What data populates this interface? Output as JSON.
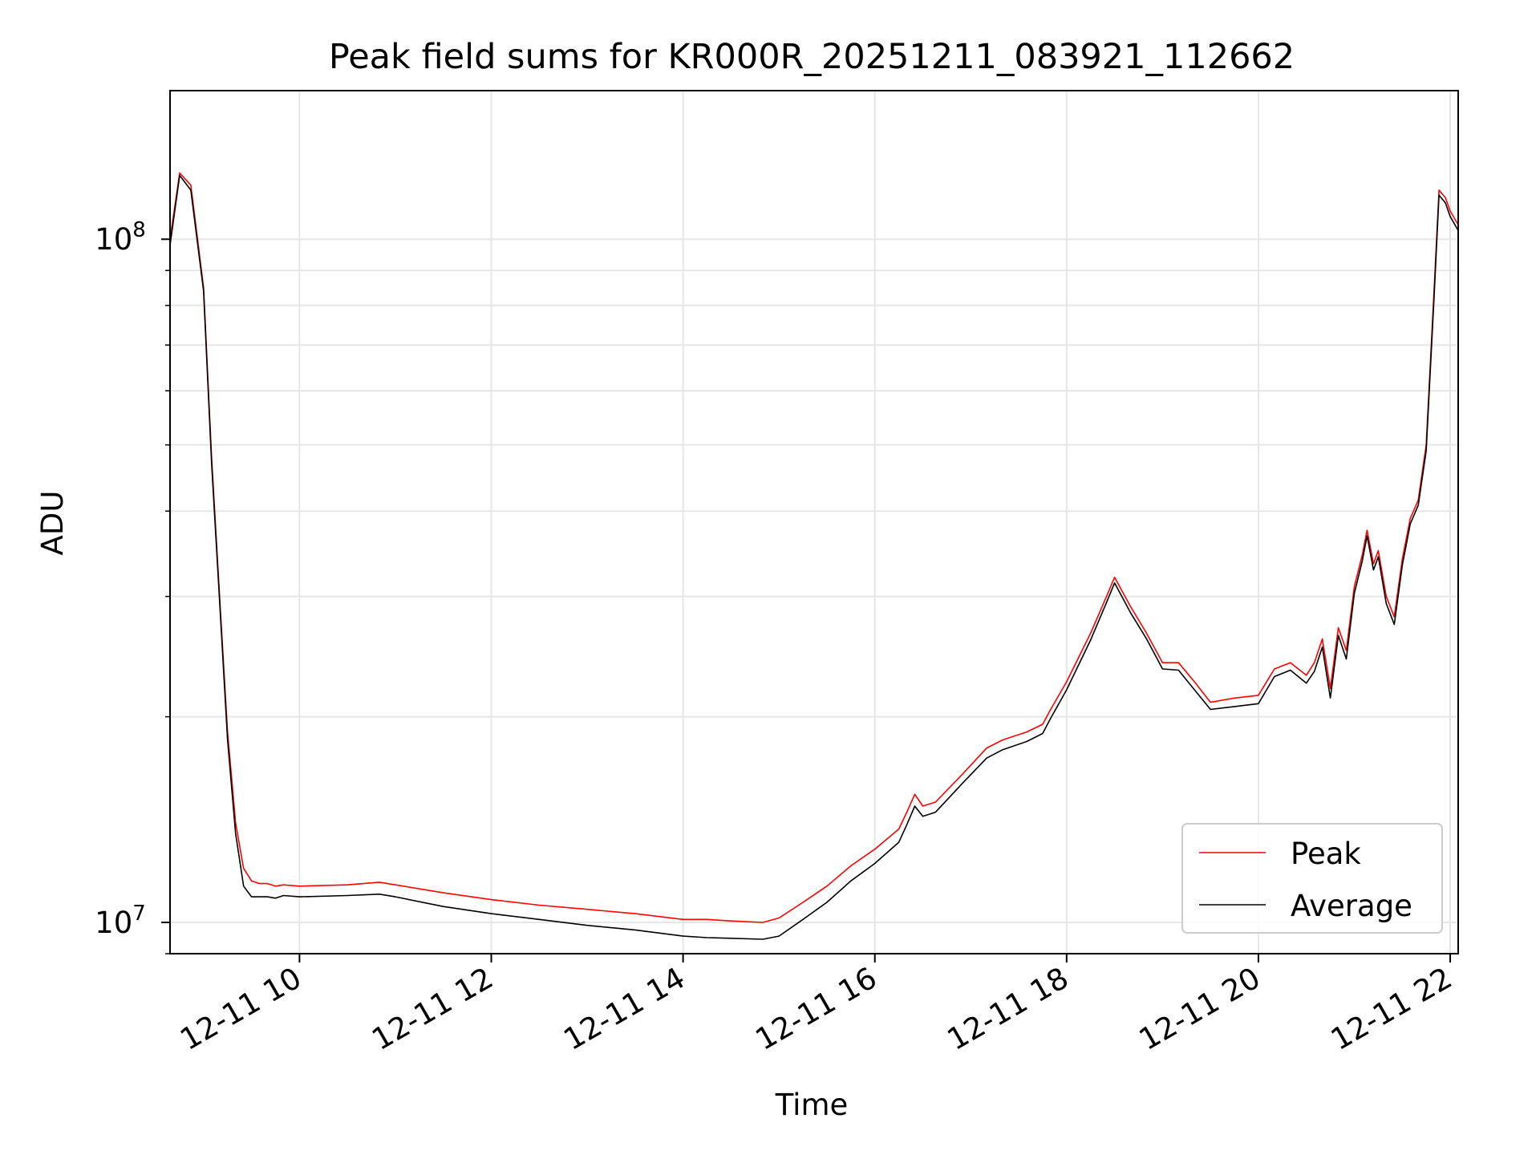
{
  "chart_data": {
    "type": "line",
    "title": "Peak field sums for KR000R_20251211_083921_112662",
    "xlabel": "Time",
    "ylabel": "ADU",
    "y_scale": "log",
    "grid": true,
    "legend_position": "bottom-right",
    "xlim": [
      "12-11 08:39",
      "12-11 22:05"
    ],
    "ylim": [
      9000000,
      165000000
    ],
    "x_ticks": [
      {
        "value": "12-11 10:00",
        "label": "12-11 10"
      },
      {
        "value": "12-11 12:00",
        "label": "12-11 12"
      },
      {
        "value": "12-11 14:00",
        "label": "12-11 14"
      },
      {
        "value": "12-11 16:00",
        "label": "12-11 16"
      },
      {
        "value": "12-11 18:00",
        "label": "12-11 18"
      },
      {
        "value": "12-11 20:00",
        "label": "12-11 20"
      },
      {
        "value": "12-11 22:00",
        "label": "12-11 22"
      }
    ],
    "y_ticks": [
      {
        "value": 10000000,
        "base": "10",
        "exp": "7"
      },
      {
        "value": 100000000,
        "base": "10",
        "exp": "8"
      }
    ],
    "series": [
      {
        "name": "Peak",
        "color": "#ff0000",
        "x": [
          "12-11 08:39",
          "12-11 08:45",
          "12-11 08:52",
          "12-11 09:00",
          "12-11 09:05",
          "12-11 09:10",
          "12-11 09:15",
          "12-11 09:20",
          "12-11 09:25",
          "12-11 09:30",
          "12-11 09:35",
          "12-11 09:40",
          "12-11 09:45",
          "12-11 09:50",
          "12-11 10:00",
          "12-11 10:30",
          "12-11 10:50",
          "12-11 11:00",
          "12-11 11:30",
          "12-11 12:00",
          "12-11 12:30",
          "12-11 13:00",
          "12-11 13:30",
          "12-11 14:00",
          "12-11 14:15",
          "12-11 14:30",
          "12-11 14:50",
          "12-11 15:00",
          "12-11 15:15",
          "12-11 15:30",
          "12-11 15:45",
          "12-11 16:00",
          "12-11 16:15",
          "12-11 16:20",
          "12-11 16:25",
          "12-11 16:30",
          "12-11 16:38",
          "12-11 16:45",
          "12-11 16:55",
          "12-11 17:10",
          "12-11 17:20",
          "12-11 17:35",
          "12-11 17:45",
          "12-11 17:50",
          "12-11 18:00",
          "12-11 18:15",
          "12-11 18:25",
          "12-11 18:30",
          "12-11 18:40",
          "12-11 18:50",
          "12-11 19:00",
          "12-11 19:10",
          "12-11 19:20",
          "12-11 19:30",
          "12-11 19:45",
          "12-11 20:00",
          "12-11 20:10",
          "12-11 20:20",
          "12-11 20:30",
          "12-11 20:35",
          "12-11 20:40",
          "12-11 20:45",
          "12-11 20:50",
          "12-11 20:55",
          "12-11 21:00",
          "12-11 21:05",
          "12-11 21:08",
          "12-11 21:12",
          "12-11 21:15",
          "12-11 21:20",
          "12-11 21:25",
          "12-11 21:30",
          "12-11 21:35",
          "12-11 21:40",
          "12-11 21:45",
          "12-11 21:50",
          "12-11 21:53",
          "12-11 21:57",
          "12-11 22:00",
          "12-11 22:05"
        ],
        "values": [
          100000000,
          125000000,
          120000000,
          85000000,
          48000000,
          30000000,
          19000000,
          14000000,
          12000000,
          11500000,
          11400000,
          11400000,
          11300000,
          11350000,
          11300000,
          11350000,
          11450000,
          11350000,
          11050000,
          10800000,
          10600000,
          10450000,
          10300000,
          10100000,
          10100000,
          10050000,
          10000000,
          10150000,
          10700000,
          11300000,
          12100000,
          12800000,
          13700000,
          14500000,
          15400000,
          14800000,
          15000000,
          15600000,
          16500000,
          18000000,
          18500000,
          19000000,
          19500000,
          20500000,
          22500000,
          26500000,
          30000000,
          32000000,
          29000000,
          26500000,
          24000000,
          24000000,
          22500000,
          21000000,
          21300000,
          21500000,
          23500000,
          24000000,
          23000000,
          24000000,
          26000000,
          22000000,
          27000000,
          25000000,
          31000000,
          34500000,
          37500000,
          33500000,
          35000000,
          30000000,
          28000000,
          34000000,
          39000000,
          41500000,
          50000000,
          85000000,
          118000000,
          115000000,
          110000000,
          105000000
        ]
      },
      {
        "name": "Average",
        "color": "#000000",
        "x": [
          "12-11 08:39",
          "12-11 08:45",
          "12-11 08:52",
          "12-11 09:00",
          "12-11 09:05",
          "12-11 09:10",
          "12-11 09:15",
          "12-11 09:20",
          "12-11 09:25",
          "12-11 09:30",
          "12-11 09:35",
          "12-11 09:40",
          "12-11 09:45",
          "12-11 09:50",
          "12-11 10:00",
          "12-11 10:30",
          "12-11 10:50",
          "12-11 11:00",
          "12-11 11:30",
          "12-11 12:00",
          "12-11 12:30",
          "12-11 13:00",
          "12-11 13:30",
          "12-11 14:00",
          "12-11 14:15",
          "12-11 14:30",
          "12-11 14:50",
          "12-11 15:00",
          "12-11 15:15",
          "12-11 15:30",
          "12-11 15:45",
          "12-11 16:00",
          "12-11 16:15",
          "12-11 16:20",
          "12-11 16:25",
          "12-11 16:30",
          "12-11 16:38",
          "12-11 16:45",
          "12-11 16:55",
          "12-11 17:10",
          "12-11 17:20",
          "12-11 17:35",
          "12-11 17:45",
          "12-11 17:50",
          "12-11 18:00",
          "12-11 18:15",
          "12-11 18:25",
          "12-11 18:30",
          "12-11 18:40",
          "12-11 18:50",
          "12-11 19:00",
          "12-11 19:10",
          "12-11 19:20",
          "12-11 19:30",
          "12-11 19:45",
          "12-11 20:00",
          "12-11 20:10",
          "12-11 20:20",
          "12-11 20:30",
          "12-11 20:35",
          "12-11 20:40",
          "12-11 20:45",
          "12-11 20:50",
          "12-11 20:55",
          "12-11 21:00",
          "12-11 21:05",
          "12-11 21:08",
          "12-11 21:12",
          "12-11 21:15",
          "12-11 21:20",
          "12-11 21:25",
          "12-11 21:30",
          "12-11 21:35",
          "12-11 21:40",
          "12-11 21:45",
          "12-11 21:50",
          "12-11 21:53",
          "12-11 21:57",
          "12-11 22:00",
          "12-11 22:05"
        ],
        "values": [
          98000000,
          124000000,
          118000000,
          84000000,
          47000000,
          29500000,
          18500000,
          13500000,
          11300000,
          10900000,
          10900000,
          10900000,
          10850000,
          10950000,
          10900000,
          10950000,
          11000000,
          10900000,
          10550000,
          10300000,
          10100000,
          9900000,
          9750000,
          9550000,
          9500000,
          9480000,
          9450000,
          9550000,
          10100000,
          10700000,
          11500000,
          12200000,
          13100000,
          13900000,
          14800000,
          14300000,
          14500000,
          15100000,
          16000000,
          17400000,
          17900000,
          18400000,
          18900000,
          19900000,
          21900000,
          25900000,
          29400000,
          31400000,
          28400000,
          26000000,
          23500000,
          23400000,
          21900000,
          20500000,
          20700000,
          20900000,
          22900000,
          23400000,
          22400000,
          23300000,
          25300000,
          21300000,
          26300000,
          24300000,
          30300000,
          33800000,
          36800000,
          32800000,
          34300000,
          29300000,
          27300000,
          33300000,
          38300000,
          40800000,
          49000000,
          83000000,
          116000000,
          113000000,
          108000000,
          103000000
        ]
      }
    ]
  }
}
